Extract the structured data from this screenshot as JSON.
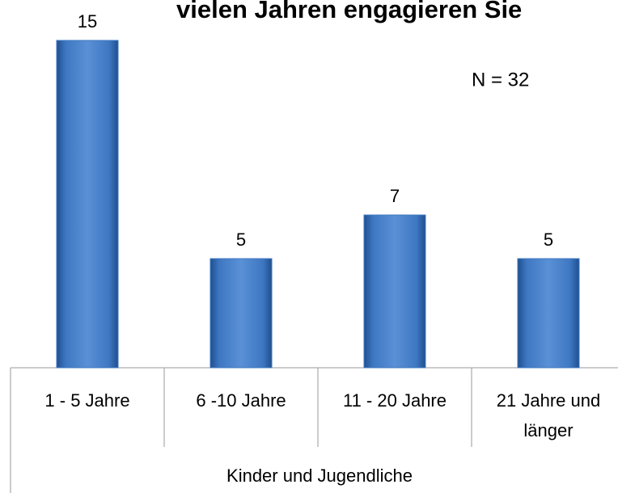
{
  "chart_data": {
    "type": "bar",
    "title": "vielen Jahren engagieren Sie",
    "annotation": "N = 32",
    "categories": [
      "1 - 5 Jahre",
      "6 -10 Jahre",
      "11 - 20 Jahre",
      "21 Jahre und länger"
    ],
    "group_label": "Kinder und Jugendliche",
    "values": [
      15,
      5,
      7,
      5
    ],
    "color": "#3f78c2"
  }
}
